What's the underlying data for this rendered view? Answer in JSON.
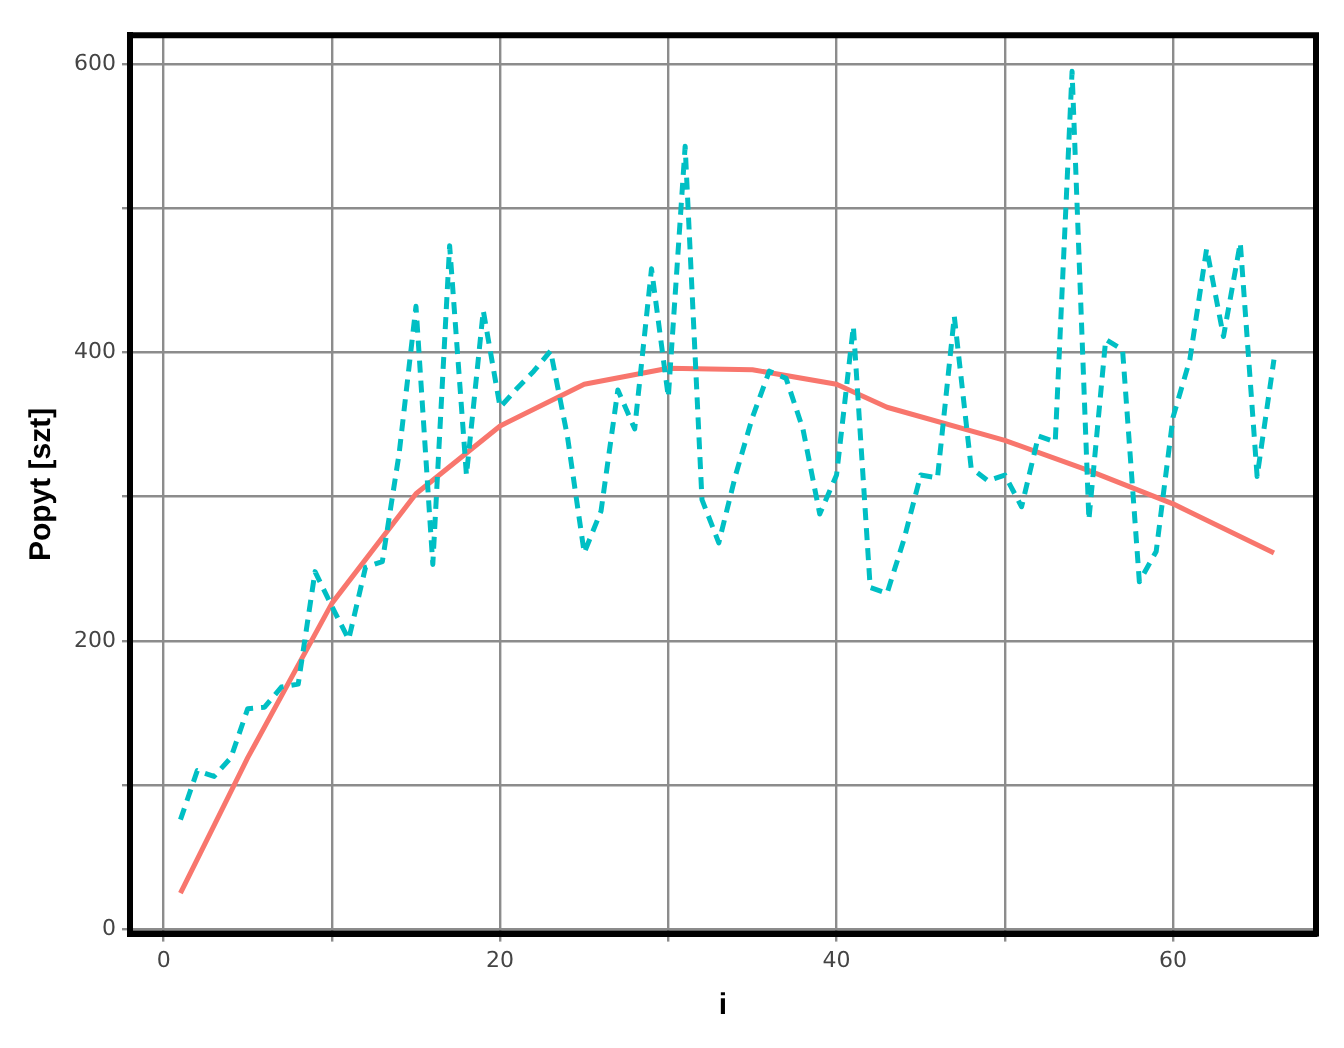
{
  "chart_data": {
    "type": "line",
    "xlabel": "i",
    "ylabel": "Popyt [szt]",
    "xlim": [
      -2,
      68.5
    ],
    "ylim": [
      -3,
      620
    ],
    "xticks": [
      0,
      {
        "value": 10,
        "label": null
      },
      20,
      {
        "value": 30,
        "label": null
      },
      40,
      {
        "value": 50,
        "label": null
      },
      60
    ],
    "yticks": [
      0,
      {
        "value": 100,
        "label": null
      },
      200,
      {
        "value": 300,
        "label": null
      },
      400,
      {
        "value": 500,
        "label": null
      },
      600
    ],
    "grid": true,
    "legend": false,
    "series": [
      {
        "color": "#00bfc4",
        "line_style": "dashed",
        "marker": "none",
        "x": [
          1,
          2,
          3,
          4,
          5,
          6,
          7,
          8,
          9,
          10,
          11,
          12,
          13,
          14,
          15,
          16,
          17,
          18,
          19,
          20,
          21,
          22,
          23,
          24,
          25,
          26,
          27,
          28,
          29,
          30,
          31,
          32,
          33,
          34,
          35,
          36,
          37,
          38,
          39,
          40,
          41,
          42,
          43,
          44,
          45,
          46,
          47,
          48,
          49,
          50,
          51,
          52,
          53,
          54,
          55,
          56,
          57,
          58,
          59,
          60,
          61,
          62,
          63,
          64,
          65,
          66
        ],
        "values": [
          76,
          110,
          106,
          119,
          153,
          154,
          168,
          170,
          248,
          224,
          201,
          251,
          255,
          330,
          432,
          253,
          474,
          315,
          429,
          362,
          375,
          387,
          401,
          342,
          261,
          290,
          374,
          347,
          458,
          369,
          543,
          298,
          268,
          315,
          355,
          387,
          382,
          347,
          288,
          315,
          418,
          237,
          233,
          270,
          315,
          313,
          425,
          320,
          311,
          315,
          293,
          342,
          338,
          595,
          284,
          409,
          402,
          241,
          262,
          355,
          395,
          472,
          411,
          476,
          314,
          395
        ]
      },
      {
        "color": "#f8766d",
        "line_style": "solid",
        "marker": "none",
        "x": [
          1,
          5,
          10,
          15,
          20,
          25,
          30,
          35,
          40,
          43,
          50,
          55,
          60,
          66
        ],
        "values": [
          25,
          119,
          226,
          302,
          349,
          378,
          389,
          388,
          378,
          362,
          339,
          318,
          295,
          261
        ]
      }
    ]
  }
}
